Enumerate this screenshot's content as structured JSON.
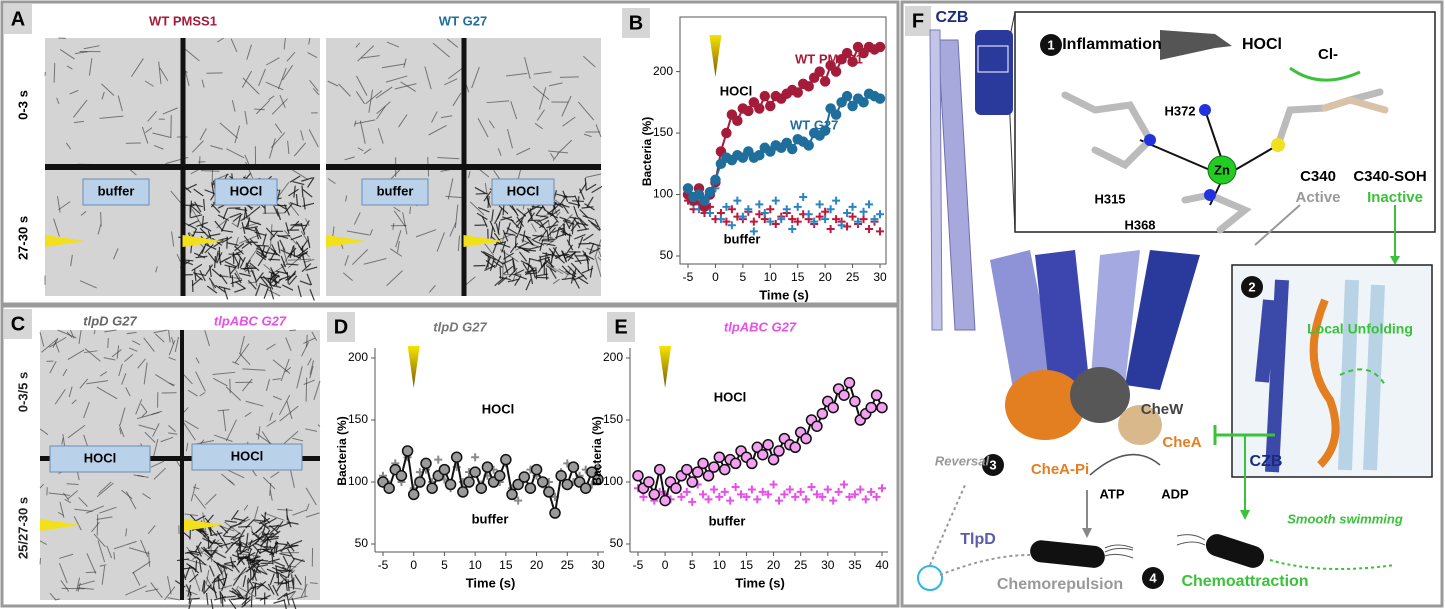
{
  "panel_labels": [
    "A",
    "B",
    "C",
    "D",
    "E",
    "F"
  ],
  "panel_a": {
    "strains": [
      "WT PMSS1",
      "WT G27"
    ],
    "time_labels": [
      "0-3 s",
      "27-30 s"
    ],
    "conditions": [
      "buffer",
      "HOCl",
      "buffer",
      "HOCl"
    ]
  },
  "panel_c": {
    "strains": [
      "tlpD G27",
      "tlpABC G27"
    ],
    "time_labels": [
      "0-3/5 s",
      "25/27-30 s"
    ],
    "conditions": [
      "HOCl",
      "HOCl"
    ]
  },
  "chart_data": [
    {
      "type": "scatter",
      "x_label": "Time (s)",
      "y_label": "Bacteria (%)",
      "x": [
        -5,
        -4,
        -3,
        -2,
        -1,
        0,
        1,
        2,
        3,
        4,
        5,
        6,
        7,
        8,
        9,
        10,
        11,
        12,
        13,
        14,
        15,
        16,
        17,
        18,
        19,
        20,
        21,
        22,
        23,
        24,
        25,
        26,
        27,
        28,
        29,
        30
      ],
      "xlim": [
        -5,
        30
      ],
      "xticks": [
        -5,
        0,
        5,
        10,
        15,
        20,
        25,
        30
      ],
      "ylim": [
        50,
        220
      ],
      "yticks": [
        50,
        100,
        150,
        200
      ],
      "annotations": [
        "HOCl",
        "buffer"
      ],
      "series": [
        {
          "name": "WT PMSS1",
          "color": "#a51c3a",
          "marker": "circle",
          "line": true,
          "values": [
            100,
            95,
            105,
            90,
            100,
            110,
            135,
            150,
            165,
            160,
            170,
            168,
            175,
            170,
            180,
            172,
            180,
            178,
            182,
            185,
            183,
            190,
            188,
            195,
            200,
            192,
            205,
            200,
            210,
            215,
            208,
            220,
            215,
            220,
            218,
            220
          ]
        },
        {
          "name": "WT G27",
          "color": "#1f6e9c",
          "marker": "circle",
          "line": true,
          "values": [
            105,
            98,
            100,
            95,
            102,
            112,
            125,
            130,
            128,
            132,
            130,
            135,
            130,
            132,
            138,
            135,
            140,
            138,
            142,
            137,
            145,
            143,
            140,
            150,
            148,
            152,
            170,
            165,
            175,
            180,
            172,
            178,
            175,
            182,
            180,
            178
          ]
        },
        {
          "color": "#c0183a",
          "marker": "plus",
          "line": false,
          "values": [
            95,
            88,
            92,
            85,
            90,
            80,
            85,
            78,
            88,
            82,
            80,
            86,
            78,
            84,
            80,
            88,
            76,
            82,
            85,
            80,
            78,
            84,
            80,
            76,
            82,
            86,
            72,
            80,
            78,
            74,
            82,
            76,
            80,
            72,
            78,
            70
          ]
        },
        {
          "color": "#2a86c0",
          "marker": "plus",
          "line": false,
          "values": [
            100,
            92,
            88,
            95,
            85,
            105,
            80,
            90,
            75,
            95,
            82,
            88,
            70,
            92,
            85,
            78,
            95,
            80,
            88,
            72,
            90,
            98,
            84,
            78,
            92,
            80,
            88,
            95,
            75,
            85,
            90,
            78,
            86,
            92,
            80,
            84
          ]
        }
      ]
    },
    {
      "type": "scatter",
      "title": "tlpD G27",
      "x_label": "Time (s)",
      "y_label": "Bacteria (%)",
      "x": [
        -5,
        -4,
        -3,
        -2,
        -1,
        0,
        1,
        2,
        3,
        4,
        5,
        6,
        7,
        8,
        9,
        10,
        11,
        12,
        13,
        14,
        15,
        16,
        17,
        18,
        19,
        20,
        21,
        22,
        23,
        24,
        25,
        26,
        27,
        28,
        29,
        30
      ],
      "xlim": [
        -5,
        30
      ],
      "xticks": [
        -5,
        0,
        5,
        10,
        15,
        20,
        25,
        30
      ],
      "ylim": [
        50,
        200
      ],
      "yticks": [
        50,
        100,
        150,
        200
      ],
      "annotations": [
        "HOCl",
        "buffer"
      ],
      "series": [
        {
          "color": "#9a9a9a",
          "edge_color": "#111111",
          "marker": "circle",
          "line": true,
          "values": [
            100,
            95,
            110,
            105,
            125,
            90,
            100,
            115,
            95,
            105,
            110,
            98,
            120,
            92,
            100,
            108,
            95,
            112,
            100,
            105,
            118,
            90,
            98,
            104,
            95,
            110,
            100,
            92,
            75,
            105,
            98,
            112,
            100,
            95,
            108,
            102
          ]
        },
        {
          "color": "#8a8a8a",
          "marker": "plus",
          "line": false,
          "values": [
            105,
            98,
            115,
            100,
            120,
            95,
            108,
            110,
            100,
            118,
            102,
            95,
            112,
            100,
            108,
            120,
            98,
            105,
            110,
            100,
            115,
            95,
            85,
            102,
            110,
            105,
            98,
            100,
            88,
            108,
            115,
            100,
            105,
            110,
            98,
            112
          ]
        }
      ]
    },
    {
      "type": "scatter",
      "title": "tlpABC G27",
      "x_label": "Time (s)",
      "y_label": "Bacteria (%)",
      "x": [
        -5,
        -4,
        -3,
        -2,
        -1,
        0,
        1,
        2,
        3,
        4,
        5,
        6,
        7,
        8,
        9,
        10,
        11,
        12,
        13,
        14,
        15,
        16,
        17,
        18,
        19,
        20,
        21,
        22,
        23,
        24,
        25,
        26,
        27,
        28,
        29,
        30,
        31,
        32,
        33,
        34,
        35,
        36,
        37,
        38,
        39,
        40
      ],
      "xlim": [
        -5,
        40
      ],
      "xticks": [
        -5,
        0,
        5,
        10,
        15,
        20,
        25,
        30,
        35,
        40
      ],
      "ylim": [
        50,
        200
      ],
      "yticks": [
        50,
        100,
        150,
        200
      ],
      "annotations": [
        "HOCl",
        "buffer"
      ],
      "series": [
        {
          "color": "#f2a0ef",
          "edge_color": "#111111",
          "marker": "circle",
          "line": true,
          "values": [
            105,
            95,
            100,
            90,
            110,
            85,
            100,
            95,
            105,
            110,
            100,
            108,
            115,
            105,
            112,
            120,
            110,
            118,
            115,
            125,
            120,
            115,
            128,
            122,
            130,
            118,
            125,
            135,
            130,
            128,
            140,
            135,
            150,
            145,
            155,
            165,
            160,
            175,
            170,
            180,
            165,
            150,
            155,
            160,
            170,
            160
          ]
        },
        {
          "color": "#e84ee8",
          "marker": "plus",
          "line": false,
          "values": [
            95,
            88,
            100,
            85,
            92,
            90,
            86,
            95,
            88,
            92,
            84,
            98,
            90,
            86,
            94,
            88,
            92,
            85,
            96,
            90,
            88,
            94,
            86,
            92,
            90,
            98,
            85,
            90,
            94,
            88,
            92,
            86,
            96,
            90,
            88,
            94,
            85,
            92,
            98,
            88,
            90,
            94,
            86,
            92,
            88,
            95
          ]
        }
      ]
    }
  ],
  "panel_f": {
    "czb_top": "CZB",
    "tlpd": "TlpD",
    "inflammation": "Inflammation",
    "hocl": "HOCl",
    "cl": "Cl-",
    "h372": "H372",
    "h315": "H315",
    "zn": "Zn",
    "c340": "C340",
    "active": "Active",
    "c340_soh": "C340-SOH",
    "inactive": "Inactive",
    "h368": "H368",
    "steps": [
      "1",
      "2",
      "3",
      "4"
    ],
    "local_unfolding": "Local Unfolding",
    "czb_inset": "CZB",
    "chew": "CheW",
    "chea": "CheA",
    "chea_pi": "CheA-Pi",
    "atp": "ATP",
    "adp": "ADP",
    "reversal": "Reversal",
    "smooth": "Smooth swimming",
    "chemorepulsion": "Chemorepulsion",
    "chemoattraction": "Chemoattraction"
  }
}
